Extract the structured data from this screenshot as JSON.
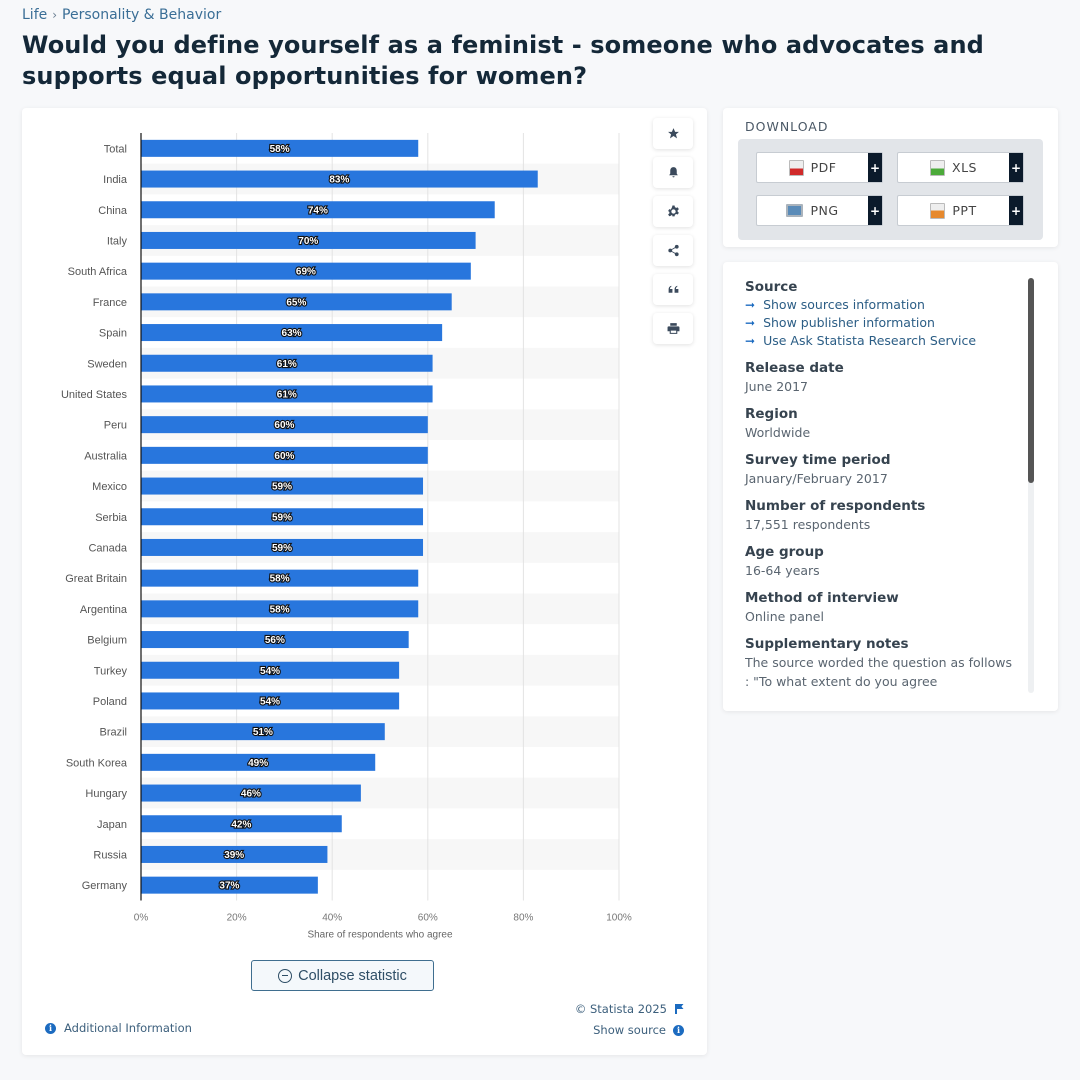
{
  "breadcrumb": {
    "items": [
      "Life",
      "Personality & Behavior"
    ],
    "separator": "›"
  },
  "page_title": "Would you define yourself as a feminist - someone who advocates and supports equal opportunities for women?",
  "toolbar": {
    "items": [
      {
        "icon": "star-icon",
        "label": "Favorite"
      },
      {
        "icon": "bell-icon",
        "label": "Notifications"
      },
      {
        "icon": "gear-icon",
        "label": "Settings"
      },
      {
        "icon": "share-icon",
        "label": "Share"
      },
      {
        "icon": "quote-icon",
        "label": "Cite"
      },
      {
        "icon": "print-icon",
        "label": "Print"
      }
    ]
  },
  "chart_data": {
    "type": "bar",
    "orientation": "horizontal",
    "categories": [
      "Total",
      "India",
      "China",
      "Italy",
      "South Africa",
      "France",
      "Spain",
      "Sweden",
      "United States",
      "Peru",
      "Australia",
      "Mexico",
      "Serbia",
      "Canada",
      "Great Britain",
      "Argentina",
      "Belgium",
      "Turkey",
      "Poland",
      "Brazil",
      "South Korea",
      "Hungary",
      "Japan",
      "Russia",
      "Germany"
    ],
    "values": [
      58,
      83,
      74,
      70,
      69,
      65,
      63,
      61,
      61,
      60,
      60,
      59,
      59,
      59,
      58,
      58,
      56,
      54,
      54,
      51,
      49,
      46,
      42,
      39,
      37
    ],
    "value_suffix": "%",
    "title": "",
    "xlabel": "Share of respondents who agree",
    "ylabel": "",
    "xlim": [
      0,
      100
    ],
    "xticks": [
      0,
      20,
      40,
      60,
      80,
      100
    ],
    "xtick_labels": [
      "0%",
      "20%",
      "40%",
      "60%",
      "80%",
      "100%"
    ],
    "grid": true,
    "legend": "none",
    "bar_color": "#2876dd"
  },
  "chart_footer": {
    "collapse_label": "Collapse statistic",
    "copyright": "© Statista 2025",
    "show_source": "Show source",
    "additional_info": "Additional Information"
  },
  "download": {
    "title": "DOWNLOAD",
    "buttons": [
      {
        "label": "PDF",
        "icon": "pdf-file-icon"
      },
      {
        "label": "XLS",
        "icon": "xls-file-icon"
      },
      {
        "label": "PNG",
        "icon": "png-file-icon"
      },
      {
        "label": "PPT",
        "icon": "ppt-file-icon"
      }
    ],
    "plus": "+"
  },
  "info": {
    "source_heading": "Source",
    "source_links": [
      "Show sources information",
      "Show publisher information",
      "Use Ask Statista Research Service"
    ],
    "fields": [
      {
        "label": "Release date",
        "value": "June 2017"
      },
      {
        "label": "Region",
        "value": "Worldwide"
      },
      {
        "label": "Survey time period",
        "value": "January/February 2017"
      },
      {
        "label": "Number of respondents",
        "value": "17,551 respondents"
      },
      {
        "label": "Age group",
        "value": "16-64 years"
      },
      {
        "label": "Method of interview",
        "value": "Online panel"
      }
    ],
    "notes_heading": "Supplementary notes",
    "notes_text": "The source worded the question as follows : \"To what extent do you agree"
  }
}
